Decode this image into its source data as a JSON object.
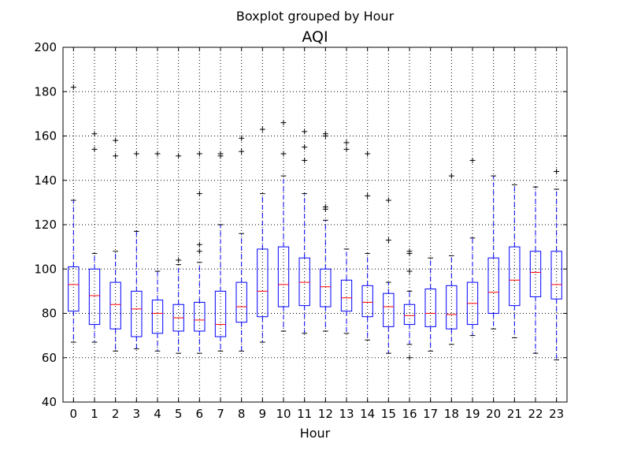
{
  "chart_data": {
    "type": "boxplot",
    "suptitle": "Boxplot grouped by Hour",
    "title": "AQI",
    "xlabel": "Hour",
    "ylabel": "",
    "ylim": [
      40,
      200
    ],
    "yticks": [
      40,
      60,
      80,
      100,
      120,
      140,
      160,
      180,
      200
    ],
    "grid": true,
    "categories": [
      "0",
      "1",
      "2",
      "3",
      "4",
      "5",
      "6",
      "7",
      "8",
      "9",
      "10",
      "11",
      "12",
      "13",
      "14",
      "15",
      "16",
      "17",
      "18",
      "19",
      "20",
      "21",
      "22",
      "23"
    ],
    "boxes": [
      {
        "whisker_low": 67,
        "q1": 81,
        "median": 93,
        "q3": 101,
        "whisker_high": 131,
        "fliers": [
          182
        ]
      },
      {
        "whisker_low": 67,
        "q1": 75,
        "median": 88,
        "q3": 100,
        "whisker_high": 107,
        "fliers": [
          154,
          161
        ]
      },
      {
        "whisker_low": 63,
        "q1": 73,
        "median": 84,
        "q3": 94,
        "whisker_high": 108,
        "fliers": [
          151,
          158
        ]
      },
      {
        "whisker_low": 64,
        "q1": 69.5,
        "median": 82,
        "q3": 90,
        "whisker_high": 117,
        "fliers": [
          152
        ]
      },
      {
        "whisker_low": 63,
        "q1": 71,
        "median": 80,
        "q3": 86,
        "whisker_high": 99,
        "fliers": [
          152
        ]
      },
      {
        "whisker_low": 62,
        "q1": 72,
        "median": 78,
        "q3": 84,
        "whisker_high": 102,
        "fliers": [
          104,
          151
        ]
      },
      {
        "whisker_low": 62,
        "q1": 72,
        "median": 77,
        "q3": 85,
        "whisker_high": 103,
        "fliers": [
          108,
          111,
          134,
          152
        ]
      },
      {
        "whisker_low": 63,
        "q1": 69.5,
        "median": 75,
        "q3": 90,
        "whisker_high": 120,
        "fliers": [
          151,
          152
        ]
      },
      {
        "whisker_low": 63,
        "q1": 76,
        "median": 83,
        "q3": 94,
        "whisker_high": 116,
        "fliers": [
          153,
          159
        ]
      },
      {
        "whisker_low": 67,
        "q1": 78.5,
        "median": 90,
        "q3": 109,
        "whisker_high": 134,
        "fliers": [
          163
        ]
      },
      {
        "whisker_low": 72,
        "q1": 83,
        "median": 93,
        "q3": 110,
        "whisker_high": 142,
        "fliers": [
          152,
          166
        ]
      },
      {
        "whisker_low": 71,
        "q1": 83.5,
        "median": 94,
        "q3": 105,
        "whisker_high": 134,
        "fliers": [
          149,
          155,
          162
        ]
      },
      {
        "whisker_low": 72,
        "q1": 83,
        "median": 92,
        "q3": 100,
        "whisker_high": 122,
        "fliers": [
          127,
          128,
          160,
          161
        ]
      },
      {
        "whisker_low": 71,
        "q1": 81,
        "median": 87,
        "q3": 95,
        "whisker_high": 109,
        "fliers": [
          154,
          157
        ]
      },
      {
        "whisker_low": 68,
        "q1": 78.5,
        "median": 85,
        "q3": 92.5,
        "whisker_high": 107,
        "fliers": [
          133,
          152
        ]
      },
      {
        "whisker_low": 62,
        "q1": 74,
        "median": 83,
        "q3": 89,
        "whisker_high": 94,
        "fliers": [
          113,
          131
        ]
      },
      {
        "whisker_low": 66,
        "q1": 75,
        "median": 79,
        "q3": 84,
        "whisker_high": 90,
        "fliers": [
          60,
          99,
          107,
          108
        ]
      },
      {
        "whisker_low": 63,
        "q1": 74,
        "median": 80,
        "q3": 91,
        "whisker_high": 105,
        "fliers": []
      },
      {
        "whisker_low": 66,
        "q1": 73,
        "median": 79.5,
        "q3": 92.5,
        "whisker_high": 106,
        "fliers": [
          142
        ]
      },
      {
        "whisker_low": 70,
        "q1": 75,
        "median": 84.5,
        "q3": 94,
        "whisker_high": 114,
        "fliers": [
          149
        ]
      },
      {
        "whisker_low": 73,
        "q1": 80,
        "median": 89.5,
        "q3": 105,
        "whisker_high": 142,
        "fliers": []
      },
      {
        "whisker_low": 69,
        "q1": 83.5,
        "median": 95,
        "q3": 110,
        "whisker_high": 138,
        "fliers": []
      },
      {
        "whisker_low": 62,
        "q1": 87.5,
        "median": 98.5,
        "q3": 108,
        "whisker_high": 137,
        "fliers": []
      },
      {
        "whisker_low": 59,
        "q1": 86.5,
        "median": 93,
        "q3": 108,
        "whisker_high": 136,
        "fliers": [
          144
        ]
      }
    ],
    "colors": {
      "box": "#0000ff",
      "median": "#ff0000",
      "flier": "#000000",
      "grid": "#000000"
    }
  }
}
